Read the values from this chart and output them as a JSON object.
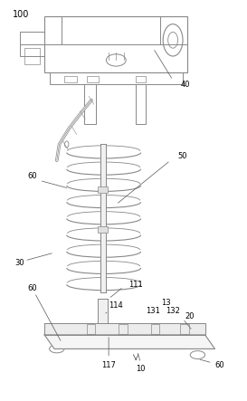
{
  "background_color": "#ffffff",
  "line_color": "#888888",
  "dark_line": "#555555",
  "figsize": [
    2.73,
    4.43
  ],
  "dpi": 100
}
